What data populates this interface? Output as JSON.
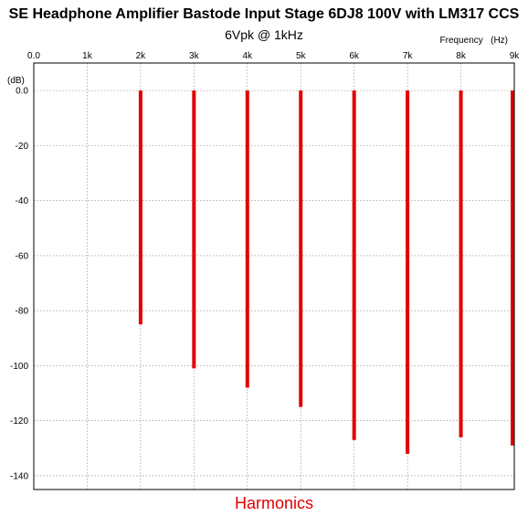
{
  "chart_data": {
    "type": "bar",
    "title": "SE Headphone Amplifier Bastode Input Stage 6DJ8 100V with LM317 CCS",
    "subtitle": "6Vpk @ 1kHz",
    "xlabel": "Frequency   (Hz)",
    "ylabel": "(dB)",
    "caption": "Harmonics",
    "x_ticks": [
      {
        "value": 0,
        "label": "0.0"
      },
      {
        "value": 1000,
        "label": "1k"
      },
      {
        "value": 2000,
        "label": "2k"
      },
      {
        "value": 3000,
        "label": "3k"
      },
      {
        "value": 4000,
        "label": "4k"
      },
      {
        "value": 5000,
        "label": "5k"
      },
      {
        "value": 6000,
        "label": "6k"
      },
      {
        "value": 7000,
        "label": "7k"
      },
      {
        "value": 8000,
        "label": "8k"
      },
      {
        "value": 9000,
        "label": "9k"
      }
    ],
    "y_ticks": [
      {
        "value": 0,
        "label": "0.0"
      },
      {
        "value": -20,
        "label": "-20"
      },
      {
        "value": -40,
        "label": "-40"
      },
      {
        "value": -60,
        "label": "-60"
      },
      {
        "value": -80,
        "label": "-80"
      },
      {
        "value": -100,
        "label": "-100"
      },
      {
        "value": -120,
        "label": "-120"
      },
      {
        "value": -140,
        "label": "-140"
      }
    ],
    "xlim": [
      0,
      9000
    ],
    "ylim": [
      -145,
      10
    ],
    "grid": true,
    "bar_color": "#e00000",
    "x": [
      2000,
      3000,
      4000,
      5000,
      6000,
      7000,
      8000,
      9000
    ],
    "values": [
      -85,
      -101,
      -108,
      -115,
      -127,
      -132,
      -126,
      -129
    ]
  }
}
